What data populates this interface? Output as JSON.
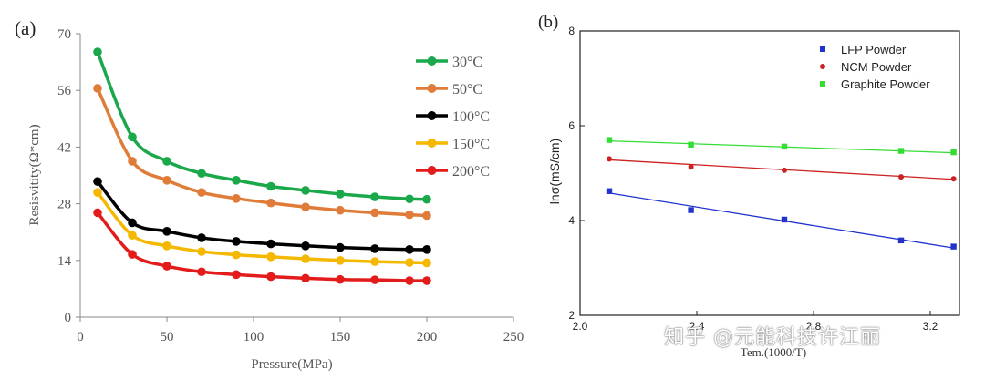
{
  "chart_data": [
    {
      "panel_label": "(a)",
      "type": "line",
      "xlabel": "Pressure(MPa)",
      "ylabel": "Resisvitity(Ω*cm)",
      "xlim": [
        0,
        250
      ],
      "ylim": [
        0,
        70
      ],
      "xticks": [
        "0",
        "50",
        "100",
        "150",
        "200",
        "250"
      ],
      "yticks": [
        "0",
        "14",
        "28",
        "42",
        "56",
        "70"
      ],
      "x": [
        10,
        30,
        50,
        70,
        90,
        110,
        130,
        150,
        170,
        190,
        200
      ],
      "legend_position": "top-right",
      "series": [
        {
          "name": "30°C",
          "color": "#1aa84b",
          "values": [
            65.5,
            44.5,
            38.5,
            35.5,
            33.8,
            32.3,
            31.3,
            30.4,
            29.7,
            29.2,
            29.1
          ]
        },
        {
          "name": "50°C",
          "color": "#e07c3a",
          "values": [
            56.5,
            38.5,
            33.8,
            30.8,
            29.3,
            28.2,
            27.2,
            26.4,
            25.8,
            25.3,
            25.1
          ]
        },
        {
          "name": "100°C",
          "color": "#000000",
          "values": [
            33.5,
            23.3,
            21.2,
            19.6,
            18.7,
            18.1,
            17.6,
            17.2,
            16.9,
            16.7,
            16.7
          ]
        },
        {
          "name": "150°C",
          "color": "#f5b800",
          "values": [
            30.8,
            20.2,
            17.6,
            16.2,
            15.4,
            14.9,
            14.4,
            14.0,
            13.7,
            13.5,
            13.4
          ]
        },
        {
          "name": "200°C",
          "color": "#e31b1b",
          "values": [
            25.8,
            15.5,
            12.6,
            11.2,
            10.5,
            10.0,
            9.6,
            9.3,
            9.2,
            9.0,
            9.0
          ]
        }
      ]
    },
    {
      "panel_label": "(b)",
      "type": "scatter",
      "xlabel": "Tem.(1000/T)",
      "ylabel": "lnσ(mS/cm)",
      "xlim": [
        2.0,
        3.3
      ],
      "ylim": [
        2,
        8
      ],
      "xticks": [
        "2.0",
        "2.4",
        "2.8",
        "3.2"
      ],
      "yticks": [
        "2",
        "4",
        "6",
        "8"
      ],
      "x": [
        2.1,
        2.38,
        2.7,
        3.1,
        3.28
      ],
      "legend_position": "top-right",
      "series": [
        {
          "name": "LFP Powder",
          "color": "#2233cc",
          "values": [
            4.62,
            4.22,
            4.02,
            3.58,
            3.45
          ],
          "fit": [
            4.58,
            3.42
          ]
        },
        {
          "name": "NCM Powder",
          "color": "#cc2222",
          "values": [
            5.3,
            5.13,
            5.06,
            4.92,
            4.88
          ],
          "fit": [
            5.28,
            4.87
          ]
        },
        {
          "name": "Graphite Powder",
          "color": "#33dd33",
          "values": [
            5.7,
            5.6,
            5.56,
            5.47,
            5.44
          ],
          "fit": [
            5.68,
            5.43
          ]
        }
      ]
    }
  ],
  "watermark": "知乎 @元能科技许江丽"
}
